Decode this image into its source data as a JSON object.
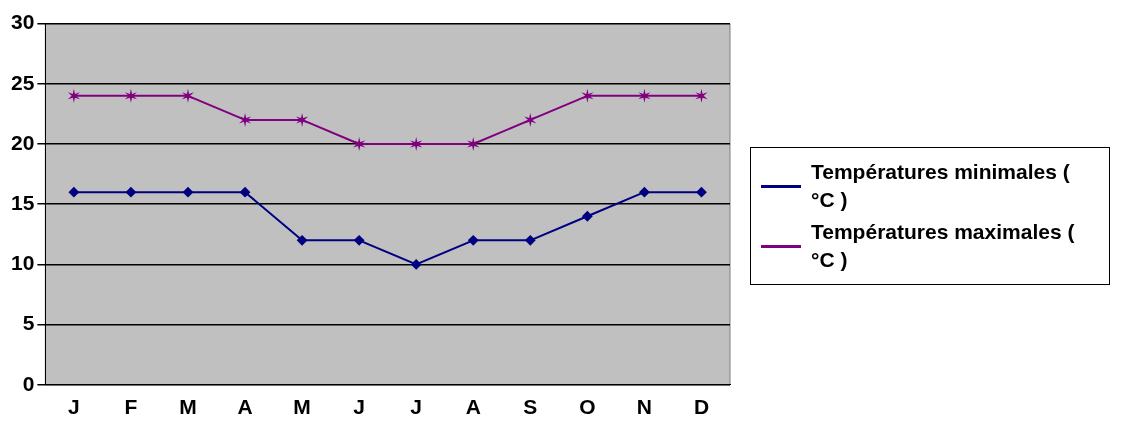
{
  "chart_data": {
    "type": "line",
    "categories": [
      "J",
      "F",
      "M",
      "A",
      "M",
      "J",
      "J",
      "A",
      "S",
      "O",
      "N",
      "D"
    ],
    "series": [
      {
        "name": "Températures minimales ( °C )",
        "color": "#000080",
        "marker": "diamond",
        "values": [
          16,
          16,
          16,
          16,
          12,
          12,
          10,
          12,
          12,
          14,
          16,
          16
        ]
      },
      {
        "name": "Températures maximales ( °C )",
        "color": "#800080",
        "marker": "cross",
        "values": [
          24,
          24,
          24,
          22,
          22,
          20,
          20,
          20,
          22,
          24,
          24,
          24
        ]
      }
    ],
    "ylim": [
      0,
      30
    ],
    "yticks": [
      0,
      5,
      10,
      15,
      20,
      25,
      30
    ],
    "grid": "y",
    "legend": "right",
    "line_style": "solid"
  }
}
